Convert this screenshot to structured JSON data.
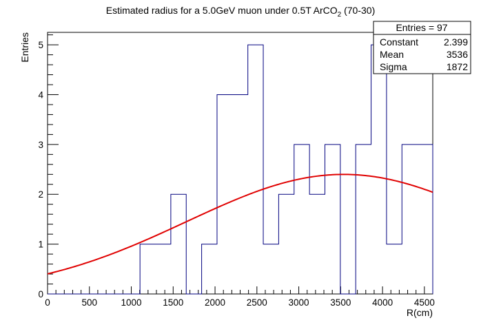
{
  "chart_data": {
    "type": "histogram",
    "title": "Estimated radius for a 5.0GeV muon under 0.5T ArCO",
    "title_subscript": "2",
    "title_suffix": " (70-30)",
    "xlabel": "R(cm)",
    "ylabel": "Entries",
    "xlim": [
      0,
      4600
    ],
    "ylim": [
      0,
      5.25
    ],
    "x_ticks": [
      0,
      500,
      1000,
      1500,
      2000,
      2500,
      3000,
      3500,
      4000,
      4500
    ],
    "y_ticks": [
      0,
      1,
      2,
      3,
      4,
      5
    ],
    "grid": false,
    "bin_width": 184,
    "bin_contents": [
      0,
      0,
      0,
      0,
      0,
      0,
      1,
      1,
      2,
      0,
      1,
      4,
      4,
      5,
      1,
      2,
      3,
      2,
      3,
      0,
      3,
      5,
      1,
      3,
      3
    ],
    "fit": {
      "name": "gaus",
      "constant": 2.399,
      "mean": 3536,
      "sigma": 1872,
      "color": "#e00000"
    },
    "histogram_color": "#00007f",
    "stats": {
      "entries_label": "Entries = 97",
      "rows": [
        {
          "name": "Constant",
          "value": "2.399"
        },
        {
          "name": "Mean",
          "value": "3536"
        },
        {
          "name": "Sigma",
          "value": "1872"
        }
      ]
    }
  }
}
